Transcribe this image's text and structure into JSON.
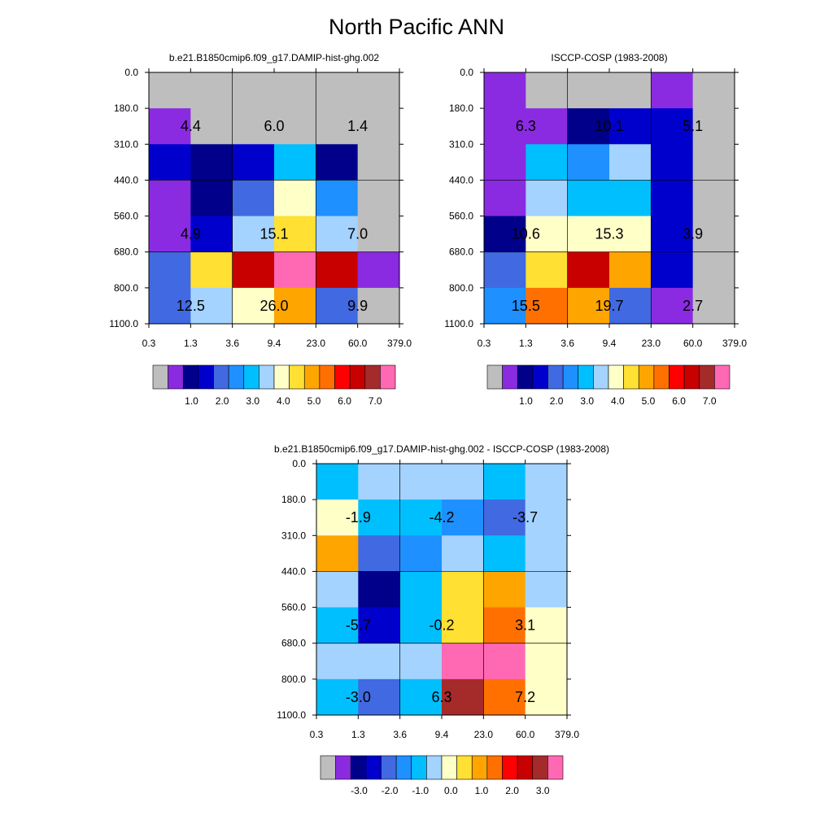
{
  "title": "North Pacific ANN",
  "colors": {
    "model_palette": [
      "#bebebe",
      "#8a2be2",
      "#00008b",
      "#0000cd",
      "#4169e1",
      "#1e90ff",
      "#00bfff",
      "#a4d3ff",
      "#ffffc8",
      "#ffe033",
      "#ffa500",
      "#ff7000",
      "#ff0000",
      "#c80000",
      "#a52a2a",
      "#ff69b4"
    ],
    "diff_palette": [
      "#bebebe",
      "#8a2be2",
      "#00008b",
      "#0000cd",
      "#4169e1",
      "#1e90ff",
      "#00bfff",
      "#a4d3ff",
      "#ffffc8",
      "#ffe033",
      "#ffa500",
      "#ff7000",
      "#ff0000",
      "#c80000",
      "#a52a2a",
      "#ff69b4"
    ]
  },
  "chart_data": [
    {
      "type": "heatmap",
      "title": "b.e21.B1850cmip6.f09_g17.DAMIP-hist-ghg.002",
      "x_ticks": [
        "0.3",
        "1.3",
        "3.6",
        "9.4",
        "23.0",
        "60.0",
        "379.0"
      ],
      "y_ticks": [
        "0.0",
        "180.0",
        "310.0",
        "440.0",
        "560.0",
        "680.0",
        "800.0",
        "1100.0"
      ],
      "cells": [
        [
          0,
          0,
          0,
          0,
          0,
          0
        ],
        [
          1,
          0,
          0,
          0,
          0,
          0
        ],
        [
          3,
          2,
          3,
          6,
          2,
          0
        ],
        [
          1,
          2,
          4,
          8,
          5,
          0
        ],
        [
          1,
          3,
          7,
          9,
          7,
          0
        ],
        [
          4,
          9,
          13,
          15,
          13,
          1
        ],
        [
          4,
          7,
          8,
          10,
          4,
          0
        ]
      ],
      "cell_labels": [
        {
          "row": 1,
          "col": 1,
          "text": "4.4"
        },
        {
          "row": 1,
          "col": 3,
          "text": "6.0"
        },
        {
          "row": 1,
          "col": 5,
          "text": "1.4"
        },
        {
          "row": 4,
          "col": 1,
          "text": "4.9"
        },
        {
          "row": 4,
          "col": 3,
          "text": "15.1"
        },
        {
          "row": 4,
          "col": 5,
          "text": "7.0"
        },
        {
          "row": 6,
          "col": 1,
          "text": "12.5"
        },
        {
          "row": 6,
          "col": 3,
          "text": "26.0"
        },
        {
          "row": 6,
          "col": 5,
          "text": "9.9"
        }
      ],
      "colorbar_labels": [
        "1.0",
        "2.0",
        "3.0",
        "4.0",
        "5.0",
        "6.0",
        "7.0"
      ]
    },
    {
      "type": "heatmap",
      "title": "ISCCP-COSP (1983-2008)",
      "x_ticks": [
        "0.3",
        "1.3",
        "3.6",
        "9.4",
        "23.0",
        "60.0",
        "379.0"
      ],
      "y_ticks": [
        "0.0",
        "180.0",
        "310.0",
        "440.0",
        "560.0",
        "680.0",
        "800.0",
        "1100.0"
      ],
      "cells": [
        [
          1,
          0,
          0,
          0,
          1,
          0
        ],
        [
          1,
          1,
          2,
          3,
          3,
          0
        ],
        [
          1,
          6,
          5,
          7,
          3,
          0
        ],
        [
          1,
          7,
          6,
          6,
          3,
          0
        ],
        [
          2,
          8,
          8,
          8,
          3,
          0
        ],
        [
          4,
          9,
          13,
          10,
          3,
          0
        ],
        [
          5,
          11,
          10,
          4,
          1,
          0
        ]
      ],
      "cell_labels": [
        {
          "row": 1,
          "col": 1,
          "text": "6.3"
        },
        {
          "row": 1,
          "col": 3,
          "text": "10.1"
        },
        {
          "row": 1,
          "col": 5,
          "text": "5.1"
        },
        {
          "row": 4,
          "col": 1,
          "text": "10.6"
        },
        {
          "row": 4,
          "col": 3,
          "text": "15.3"
        },
        {
          "row": 4,
          "col": 5,
          "text": "3.9"
        },
        {
          "row": 6,
          "col": 1,
          "text": "15.5"
        },
        {
          "row": 6,
          "col": 3,
          "text": "19.7"
        },
        {
          "row": 6,
          "col": 5,
          "text": "2.7"
        }
      ],
      "colorbar_labels": [
        "1.0",
        "2.0",
        "3.0",
        "4.0",
        "5.0",
        "6.0",
        "7.0"
      ]
    },
    {
      "type": "heatmap",
      "title": "b.e21.B1850cmip6.f09_g17.DAMIP-hist-ghg.002 - ISCCP-COSP (1983-2008)",
      "x_ticks": [
        "0.3",
        "1.3",
        "3.6",
        "9.4",
        "23.0",
        "60.0",
        "379.0"
      ],
      "y_ticks": [
        "0.0",
        "180.0",
        "310.0",
        "440.0",
        "560.0",
        "680.0",
        "800.0",
        "1100.0"
      ],
      "cells": [
        [
          6,
          7,
          7,
          7,
          6,
          7
        ],
        [
          8,
          6,
          6,
          5,
          4,
          7
        ],
        [
          10,
          4,
          5,
          7,
          6,
          7
        ],
        [
          7,
          2,
          6,
          9,
          10,
          7
        ],
        [
          6,
          3,
          6,
          9,
          11,
          8
        ],
        [
          7,
          7,
          7,
          15,
          15,
          8
        ],
        [
          6,
          4,
          6,
          14,
          11,
          8
        ]
      ],
      "cell_labels": [
        {
          "row": 1,
          "col": 1,
          "text": "-1.9"
        },
        {
          "row": 1,
          "col": 3,
          "text": "-4.2"
        },
        {
          "row": 1,
          "col": 5,
          "text": "-3.7"
        },
        {
          "row": 4,
          "col": 1,
          "text": "-5.7"
        },
        {
          "row": 4,
          "col": 3,
          "text": "-0.2"
        },
        {
          "row": 4,
          "col": 5,
          "text": "3.1"
        },
        {
          "row": 6,
          "col": 1,
          "text": "-3.0"
        },
        {
          "row": 6,
          "col": 3,
          "text": "6.3"
        },
        {
          "row": 6,
          "col": 5,
          "text": "7.2"
        }
      ],
      "colorbar_labels": [
        "-3.0",
        "-2.0",
        "-1.0",
        "0.0",
        "1.0",
        "2.0",
        "3.0"
      ]
    }
  ]
}
